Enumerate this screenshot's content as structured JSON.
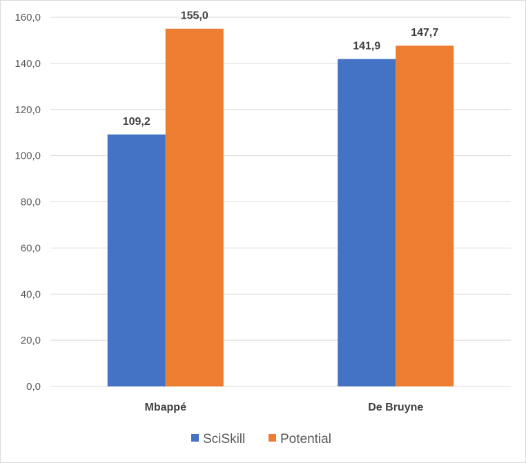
{
  "chart_data": {
    "type": "bar",
    "categories": [
      "Mbappé",
      "De Bruyne"
    ],
    "series": [
      {
        "name": "SciSkill",
        "color": "#4472C4",
        "values": [
          109.2,
          141.9
        ],
        "labels": [
          "109,2",
          "141,9"
        ]
      },
      {
        "name": "Potential",
        "color": "#ED7D31",
        "values": [
          155.0,
          147.7
        ],
        "labels": [
          "155,0",
          "147,7"
        ]
      }
    ],
    "ylim": [
      0,
      160
    ],
    "yticks": [
      0,
      20,
      40,
      60,
      80,
      100,
      120,
      140,
      160
    ],
    "ytick_labels": [
      "0,0",
      "20,0",
      "40,0",
      "60,0",
      "80,0",
      "100,0",
      "120,0",
      "140,0",
      "160,0"
    ],
    "grid": true,
    "legend_position": "bottom",
    "title": "",
    "xlabel": "",
    "ylabel": ""
  }
}
